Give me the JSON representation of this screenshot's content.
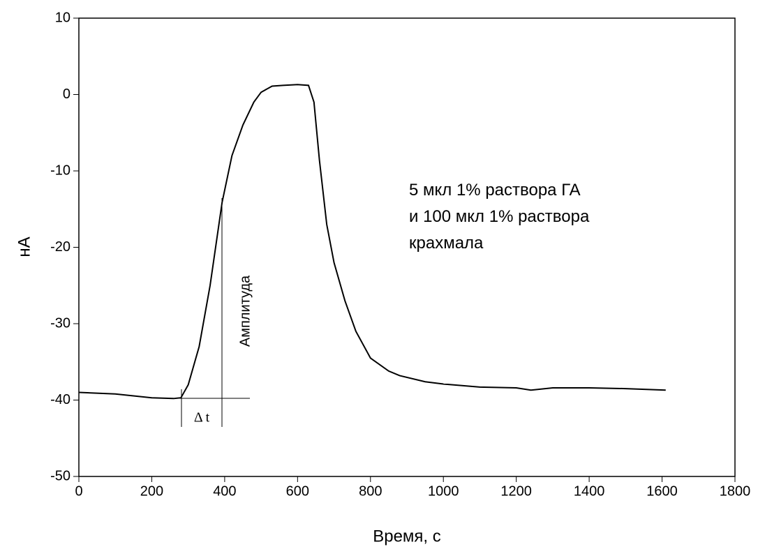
{
  "chart_data": {
    "type": "line",
    "x_label": "Время, с",
    "y_label": "нА",
    "annotations": [
      "5 мкл 1% раствора ГА",
      "и 100 мкл 1% раствора",
      "крахмала"
    ],
    "amplitude_label": "Амплитуда",
    "delta_t_label": "Δ t",
    "color": "#000000",
    "xlim": [
      0,
      1800
    ],
    "ylim": [
      -50,
      10
    ],
    "xticks": [
      0,
      200,
      400,
      600,
      800,
      1000,
      1200,
      1400,
      1600,
      1800
    ],
    "yticks": [
      10,
      0,
      -10,
      -20,
      -30,
      -40,
      -50
    ],
    "x": [
      0,
      100,
      200,
      260,
      280,
      300,
      330,
      360,
      393,
      420,
      450,
      480,
      500,
      530,
      560,
      600,
      630,
      645,
      660,
      680,
      700,
      730,
      760,
      800,
      850,
      880,
      950,
      1000,
      1100,
      1200,
      1240,
      1300,
      1400,
      1500,
      1610
    ],
    "values": [
      -39.0,
      -39.2,
      -39.7,
      -39.8,
      -39.7,
      -38,
      -33,
      -25,
      -14.1,
      -8,
      -4,
      -1,
      0.3,
      1.1,
      1.2,
      1.3,
      1.2,
      -1,
      -8.6,
      -17,
      -22,
      -27,
      -31,
      -34.5,
      -36.2,
      -36.8,
      -37.6,
      -37.9,
      -38.3,
      -38.4,
      -38.7,
      -38.4,
      -38.4,
      -38.5,
      -38.7
    ]
  }
}
